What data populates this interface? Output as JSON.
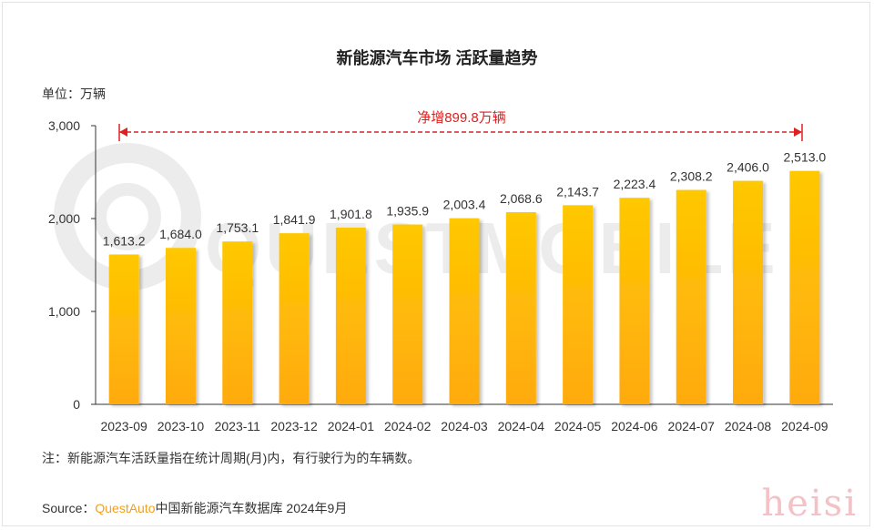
{
  "title": "新能源汽车市场 活跃量趋势",
  "unit_label": "单位：万辆",
  "annotation": "净增899.8万辆",
  "note": "注：新能源汽车活跃量指在统计周期(月)内，有行驶行为的车辆数。",
  "source": {
    "prefix": "Source：",
    "brand": "QuestAuto",
    "rest": "中国新能源汽车数据库 2024年9月"
  },
  "watermarks": {
    "logo_text": "QUESTMOBILE",
    "corner_text": "heisi"
  },
  "colors": {
    "bar_top": "#FFC800",
    "bar_bottom": "#FFAA10",
    "annotation": "#E02020",
    "axis": "#333333"
  },
  "chart_data": {
    "type": "bar",
    "categories": [
      "2023-09",
      "2023-10",
      "2023-11",
      "2023-12",
      "2024-01",
      "2024-02",
      "2024-03",
      "2024-04",
      "2024-05",
      "2024-06",
      "2024-07",
      "2024-08",
      "2024-09"
    ],
    "values": [
      1613.2,
      1684.0,
      1753.1,
      1841.9,
      1901.8,
      1935.9,
      2003.4,
      2068.6,
      2143.7,
      2223.4,
      2308.2,
      2406.0,
      2513.0
    ],
    "value_labels": [
      "1,613.2",
      "1,684.0",
      "1,753.1",
      "1,841.9",
      "1,901.8",
      "1,935.9",
      "2,003.4",
      "2,068.6",
      "2,143.7",
      "2,223.4",
      "2,308.2",
      "2,406.0",
      "2,513.0"
    ],
    "yticks": [
      0,
      1000,
      2000,
      3000
    ],
    "ytick_labels": [
      "0",
      "1,000",
      "2,000",
      "3,000"
    ],
    "ylim": [
      0,
      3000
    ],
    "xlabel": "",
    "ylabel": "",
    "grid": false,
    "legend": "none"
  }
}
